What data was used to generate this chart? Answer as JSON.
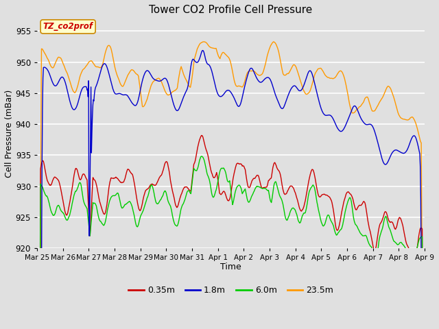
{
  "title": "Tower CO2 Profile Cell Pressure",
  "xlabel": "Time",
  "ylabel": "Cell Pressure (mBar)",
  "ylim": [
    920,
    957
  ],
  "yticks": [
    920,
    925,
    930,
    935,
    940,
    945,
    950,
    955
  ],
  "bg_color": "#e0e0e0",
  "grid_color": "#ffffff",
  "annotation_text": "TZ_co2prof",
  "annotation_fg": "#cc0000",
  "annotation_bg": "#ffffcc",
  "annotation_border": "#cc8800",
  "legend_entries": [
    "0.35m",
    "1.8m",
    "6.0m",
    "23.5m"
  ],
  "line_colors": [
    "#cc0000",
    "#0000cc",
    "#00cc00",
    "#ff9900"
  ],
  "date_labels": [
    "Mar 25",
    "Mar 26",
    "Mar 27",
    "Mar 28",
    "Mar 29",
    "Mar 30",
    "Mar 31",
    "Apr 1",
    "Apr 2",
    "Apr 3",
    "Apr 4",
    "Apr 5",
    "Apr 6",
    "Apr 7",
    "Apr 8",
    "Apr 9"
  ]
}
